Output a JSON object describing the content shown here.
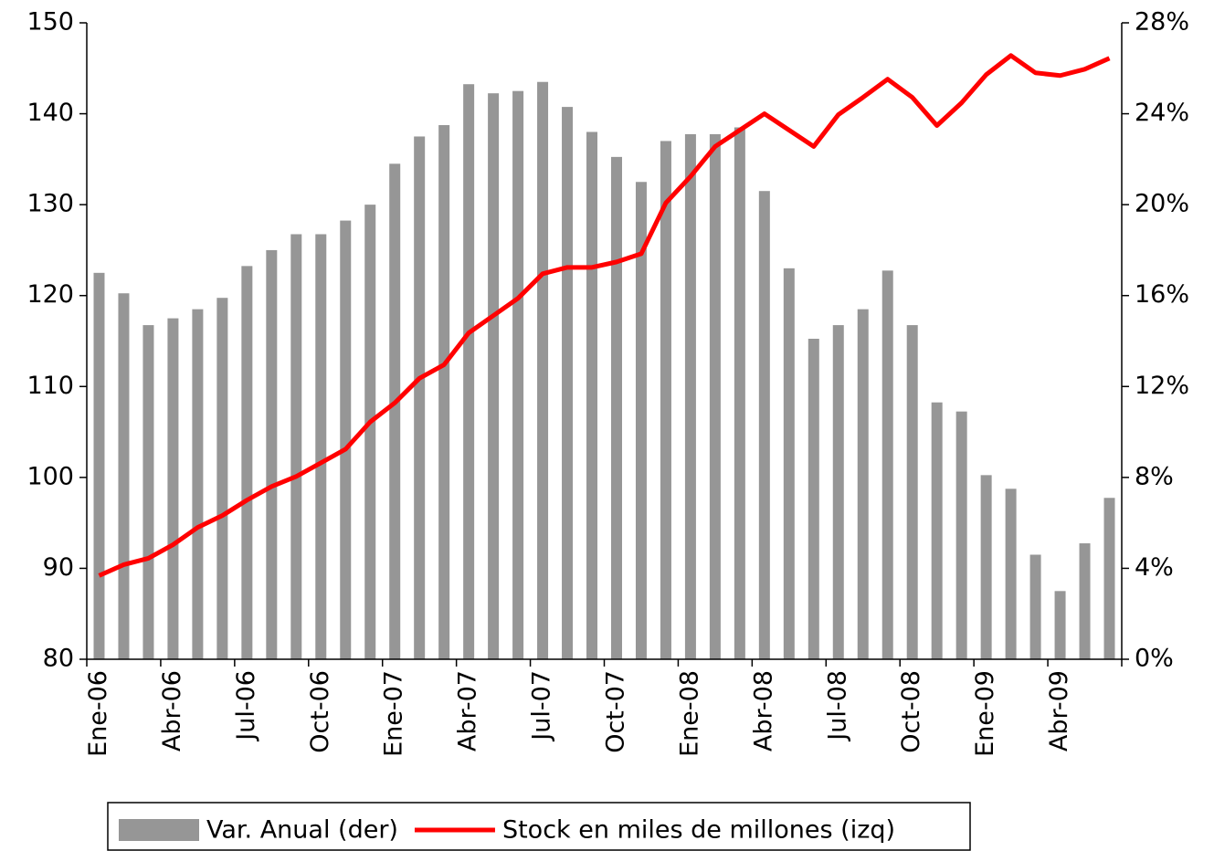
{
  "chart_data": {
    "type": "bar",
    "categories": [
      "Ene-06",
      null,
      null,
      "Abr-06",
      null,
      null,
      "Jul-06",
      null,
      null,
      "Oct-06",
      null,
      null,
      "Ene-07",
      null,
      null,
      "Abr-07",
      null,
      null,
      "Jul-07",
      null,
      null,
      "Oct-07",
      null,
      null,
      "Ene-08",
      null,
      null,
      "Abr-08",
      null,
      null,
      "Jul-08",
      null,
      null,
      "Oct-08",
      null,
      null,
      "Ene-09",
      null,
      null,
      "Abr-09",
      null,
      null
    ],
    "series": [
      {
        "name": "Var. Anual (der)",
        "type": "bar",
        "axis": "y2",
        "color": "#969696",
        "values": [
          17.0,
          16.1,
          14.7,
          15.0,
          15.4,
          15.9,
          17.3,
          18.0,
          18.7,
          18.7,
          19.3,
          20.0,
          21.8,
          23.0,
          23.5,
          25.3,
          24.9,
          25.0,
          25.4,
          24.3,
          23.2,
          22.1,
          21.0,
          22.8,
          23.1,
          23.1,
          23.4,
          20.6,
          17.2,
          14.1,
          14.7,
          15.4,
          17.1,
          14.7,
          11.3,
          10.9,
          8.1,
          7.5,
          4.6,
          3.0,
          5.1,
          7.1
        ]
      },
      {
        "name": "Stock en miles de millones (izq)",
        "type": "line",
        "axis": "y",
        "color": "#ff0000",
        "values": [
          89.2,
          90.4,
          91.1,
          92.6,
          94.5,
          95.8,
          97.5,
          99.0,
          100.1,
          101.6,
          103.1,
          106.1,
          108.2,
          110.9,
          112.4,
          115.9,
          117.8,
          119.7,
          122.4,
          123.1,
          123.1,
          123.7,
          124.6,
          130.2,
          133.1,
          136.4,
          138.2,
          140.0,
          138.2,
          136.4,
          139.9,
          141.8,
          143.8,
          141.8,
          138.7,
          141.2,
          144.3,
          146.4,
          144.5,
          144.2,
          144.9,
          146.1
        ]
      }
    ],
    "ylim": [
      80,
      150
    ],
    "yticks": [
      80,
      90,
      100,
      110,
      120,
      130,
      140,
      150
    ],
    "y2lim": [
      0,
      28
    ],
    "y2ticks": [
      {
        "value": 0,
        "label": "0%"
      },
      {
        "value": 4,
        "label": "4%"
      },
      {
        "value": 8,
        "label": "8%"
      },
      {
        "value": 12,
        "label": "12%"
      },
      {
        "value": 16,
        "label": "16%"
      },
      {
        "value": 20,
        "label": "20%"
      },
      {
        "value": 24,
        "label": "24%"
      },
      {
        "value": 28,
        "label": "28%"
      }
    ],
    "legend": "bottom"
  }
}
